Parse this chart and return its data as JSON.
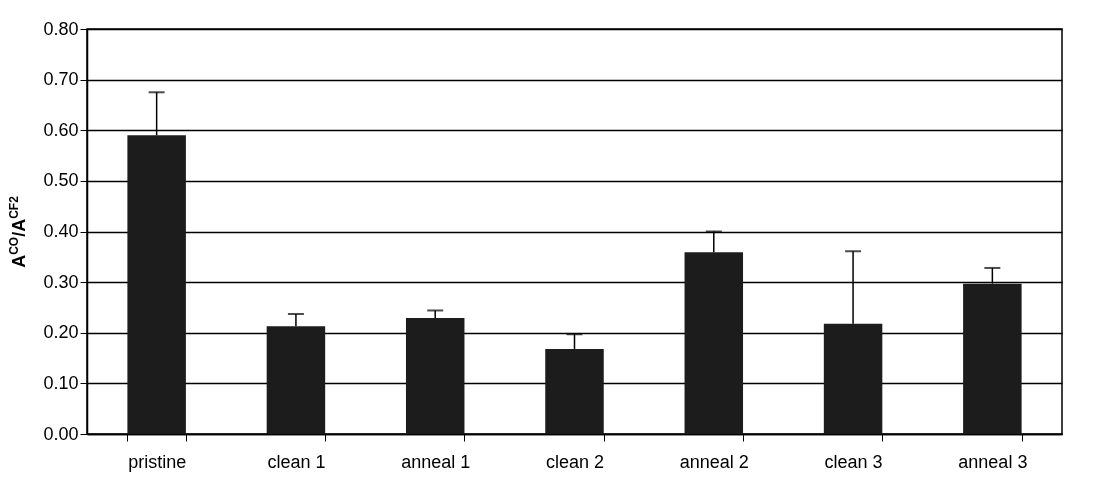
{
  "chart_data": {
    "type": "bar",
    "ylabel": "A$^{CO}$/A$^{CF2}$",
    "categories": [
      "pristine",
      "clean 1",
      "anneal 1",
      "clean 2",
      "anneal 2",
      "clean 3",
      "anneal 3"
    ],
    "values": [
      0.59,
      0.213,
      0.229,
      0.168,
      0.359,
      0.218,
      0.297
    ],
    "errors": [
      [
        0.59,
        0.675
      ],
      [
        0.213,
        0.237
      ],
      [
        0.229,
        0.244
      ],
      [
        0.168,
        0.197
      ],
      [
        0.359,
        0.4
      ],
      [
        0.218,
        0.361
      ],
      [
        0.297,
        0.328
      ]
    ],
    "color": "#1c1c1c",
    "ylim": [
      0,
      0.8
    ],
    "yticks": [
      {
        "value": 0,
        "label": "0.00"
      },
      {
        "value": 0.1,
        "label": "0.10"
      },
      {
        "value": 0.2,
        "label": "0.20"
      },
      {
        "value": 0.3,
        "label": "0.30"
      },
      {
        "value": 0.4,
        "label": "0.40"
      },
      {
        "value": 0.5,
        "label": "0.50"
      },
      {
        "value": 0.6,
        "label": "0.60"
      },
      {
        "value": 0.7,
        "label": "0.70"
      },
      {
        "value": 0.8,
        "label": "0.80"
      }
    ],
    "grid": "y"
  }
}
